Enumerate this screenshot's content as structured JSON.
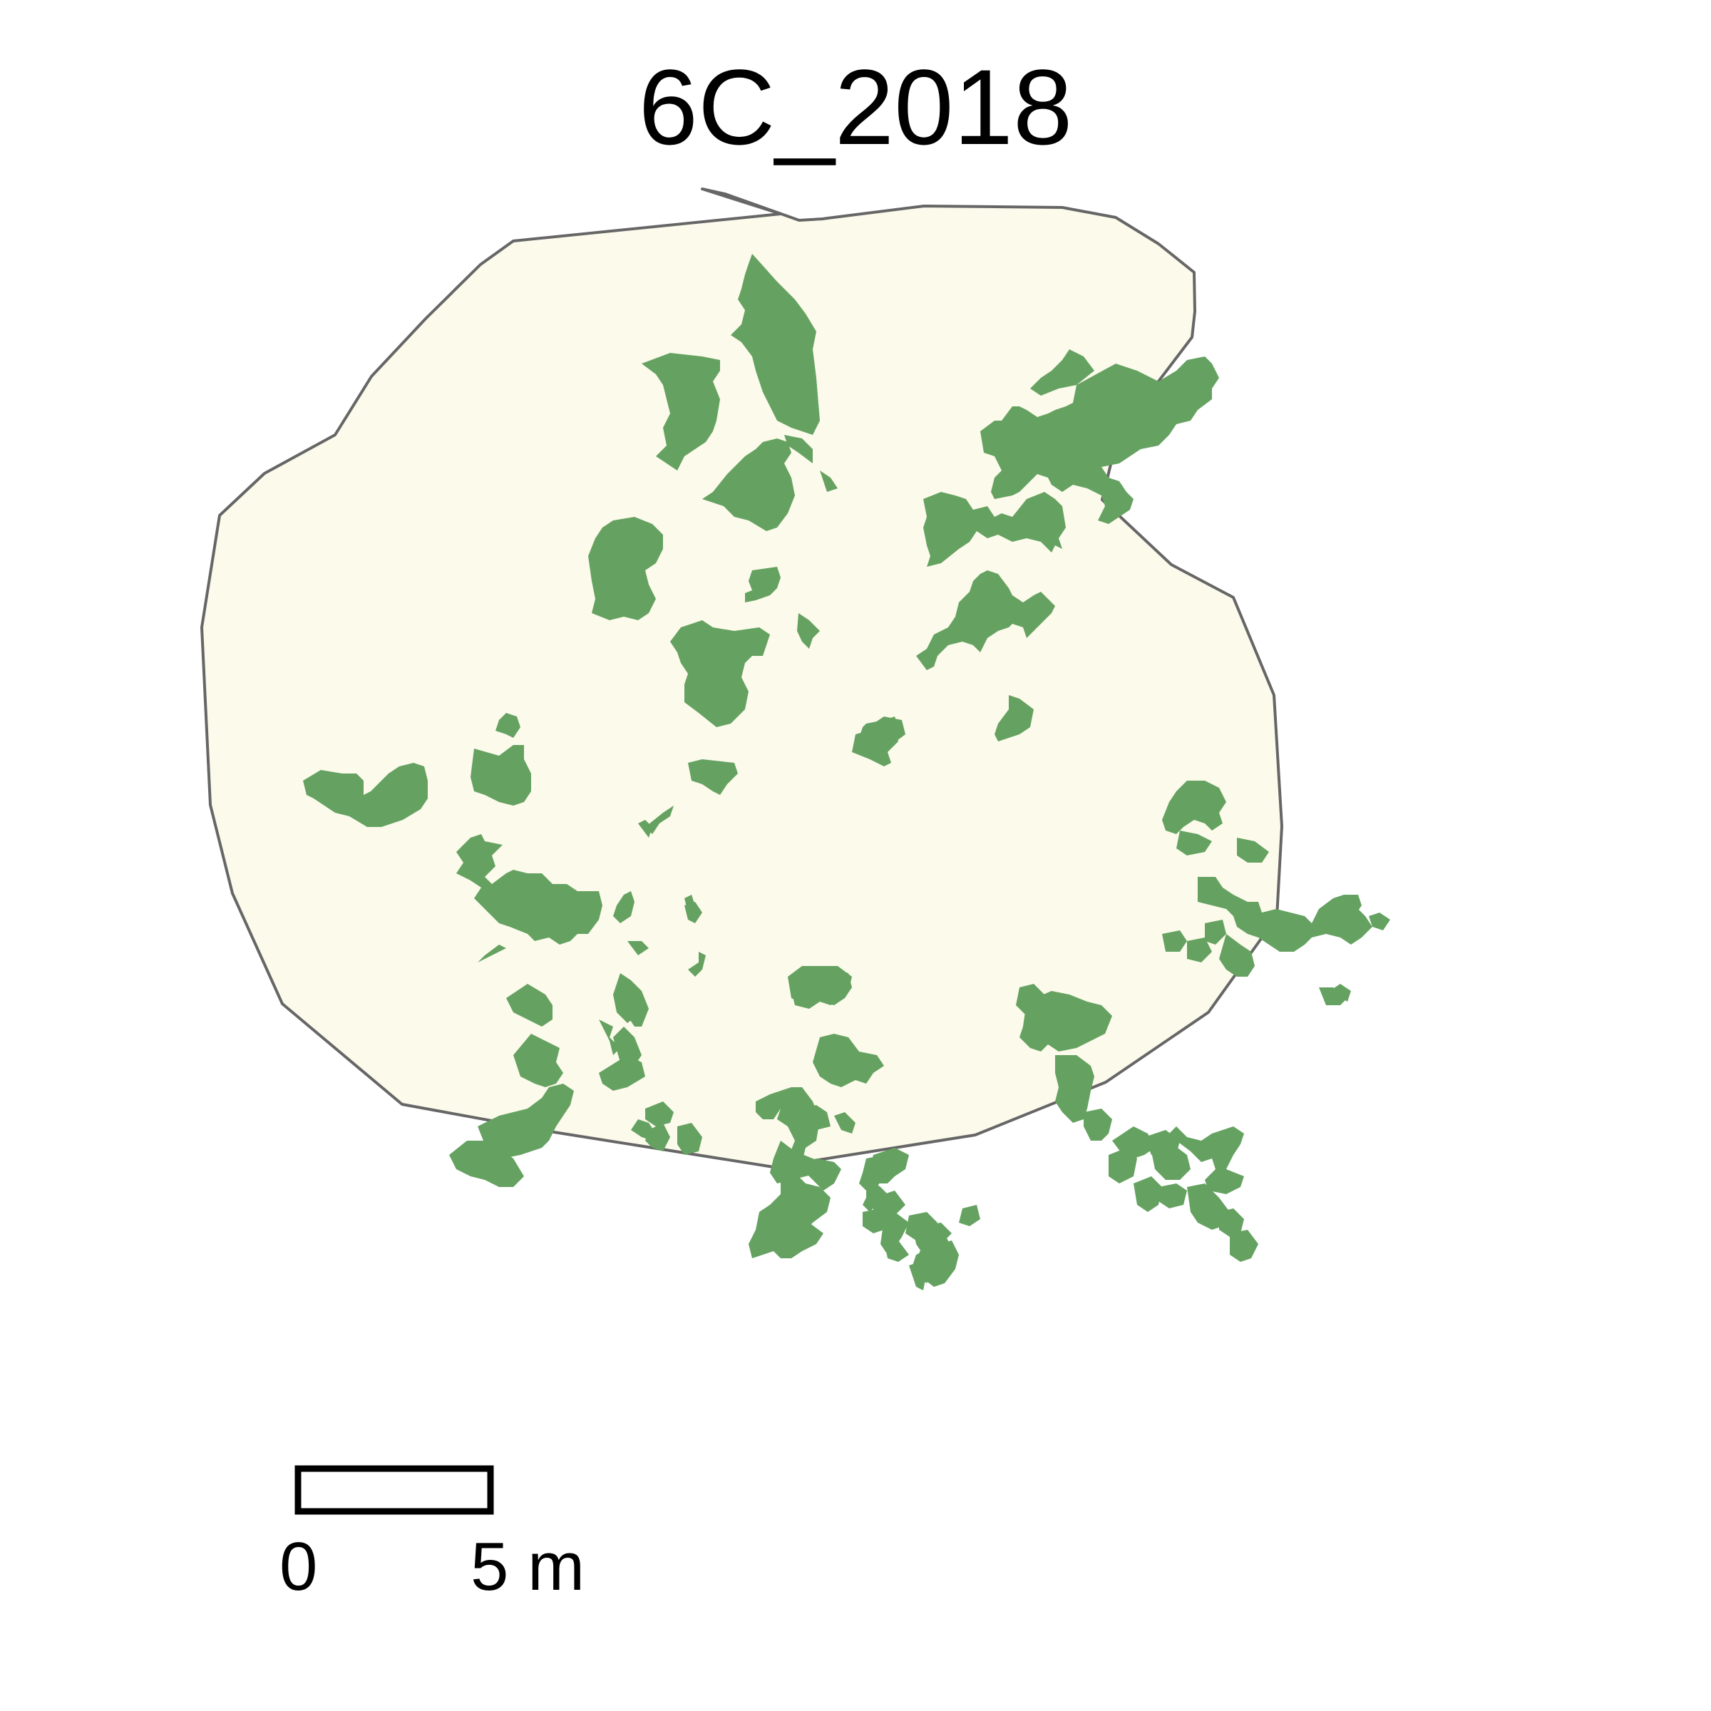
{
  "title": "6C_2018",
  "colors": {
    "boundary_fill": "#fcfaeb",
    "boundary_stroke": "#666666",
    "patch_fill": "#65a261",
    "scale_bar_stroke": "#000000"
  },
  "scale_bar": {
    "label_start": "0",
    "label_end": "5 m"
  }
}
